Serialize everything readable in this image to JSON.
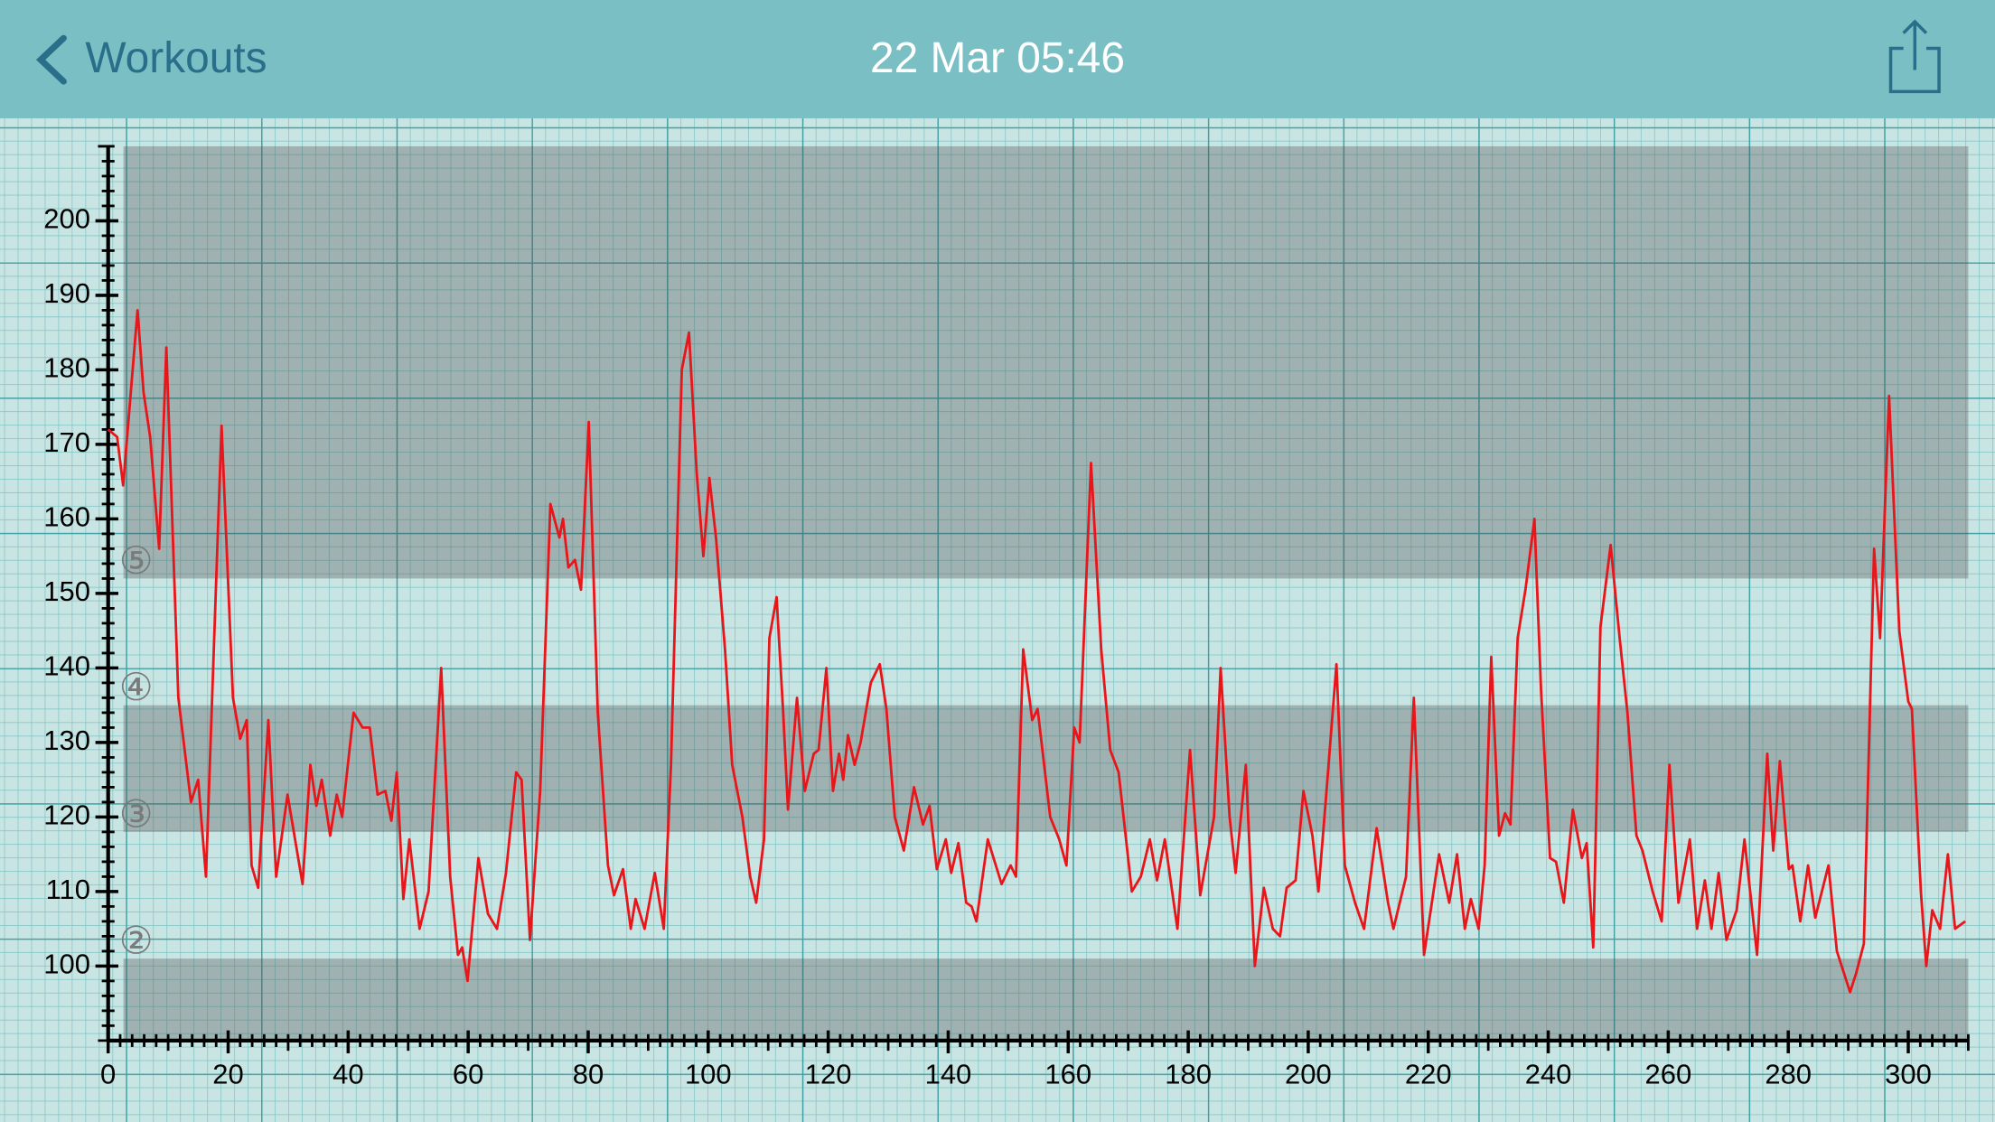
{
  "header": {
    "back": "Workouts",
    "title": "22 Mar 05:46"
  },
  "chart_data": {
    "type": "line",
    "xlim": [
      0,
      310
    ],
    "ylim": [
      90,
      210
    ],
    "xticks": [
      0,
      20,
      40,
      60,
      80,
      100,
      120,
      140,
      160,
      180,
      200,
      220,
      240,
      260,
      280,
      300
    ],
    "yticks": [
      100,
      110,
      120,
      130,
      140,
      150,
      160,
      170,
      180,
      190,
      200
    ],
    "minor_tick_step": 2,
    "zones": [
      {
        "from": 90,
        "to": 101,
        "shaded": true
      },
      {
        "label": "②",
        "from": 101,
        "to": 118,
        "shaded": false
      },
      {
        "label": "③",
        "from": 118,
        "to": 135,
        "shaded": true
      },
      {
        "label": "④",
        "from": 135,
        "to": 152,
        "shaded": false
      },
      {
        "label": "⑤",
        "from": 152,
        "to": 210,
        "shaded": true
      }
    ],
    "x": [
      0,
      1.5,
      2.5,
      4.9,
      5.9,
      7,
      8.5,
      9.7,
      11.7,
      13.8,
      15,
      16.3,
      18.9,
      20.8,
      22,
      23.1,
      23.9,
      25,
      26.7,
      28,
      29.9,
      32.4,
      33.7,
      34.7,
      35.6,
      37,
      38.1,
      39,
      40.9,
      42.4,
      43.6,
      44.9,
      46.2,
      47.2,
      48.1,
      49.2,
      50.2,
      51.9,
      53.4,
      55.5,
      57,
      58.3,
      59,
      59.9,
      61.7,
      63.3,
      64.8,
      66.3,
      68,
      68.9,
      70.3,
      72,
      73.7,
      75.2,
      75.8,
      76.7,
      77.8,
      78.8,
      80.1,
      81.6,
      83.3,
      84.3,
      85.8,
      87.1,
      87.9,
      89.4,
      91.1,
      92.6,
      93.8,
      95.6,
      96.8,
      98.1,
      99.2,
      100.2,
      101.3,
      102.8,
      104,
      105.7,
      107,
      108,
      109.3,
      110.2,
      111.4,
      112.5,
      113.3,
      114.8,
      116.1,
      117.6,
      118.4,
      119.7,
      120.8,
      121.8,
      122.5,
      123.3,
      124.4,
      125.4,
      127.1,
      128.6,
      129.7,
      131.1,
      132.6,
      134.3,
      135.8,
      136.9,
      138.1,
      139.6,
      140.5,
      141.7,
      143,
      143.9,
      144.7,
      146.6,
      148.9,
      150.4,
      151.3,
      152.5,
      154,
      154.9,
      155.7,
      157,
      158.5,
      159.7,
      161,
      161.9,
      163.8,
      165.5,
      167,
      168.4,
      170.6,
      172.1,
      173.6,
      174.8,
      176.1,
      178.2,
      180.3,
      182,
      184.3,
      185.4,
      186.9,
      187.9,
      189.6,
      191.1,
      192.6,
      194.1,
      195.3,
      196.4,
      197.9,
      199.2,
      200.7,
      201.7,
      203,
      204.7,
      206.1,
      207.8,
      209.3,
      211.4,
      213.3,
      214.2,
      216.3,
      217.6,
      219.3,
      220.6,
      221.8,
      223.5,
      224.8,
      226.1,
      227.1,
      228.4,
      229.4,
      230.5,
      231.8,
      232.8,
      233.7,
      234.9,
      236.2,
      237.7,
      238.8,
      240.3,
      241.3,
      242.6,
      244.1,
      245.6,
      246.4,
      247.5,
      248.7,
      250.4,
      251.9,
      253.2,
      254.7,
      255.7,
      257.4,
      258.9,
      260.2,
      261.7,
      263.6,
      264.8,
      266.1,
      267.2,
      268.4,
      269.7,
      271.4,
      272.7,
      274.8,
      276.5,
      277.5,
      278.6,
      280.1,
      280.7,
      282,
      283.3,
      284.5,
      286.7,
      288.1,
      290.3,
      291.3,
      292.6,
      294.3,
      295.3,
      296.8,
      298.5,
      300,
      300.6,
      302.1,
      303,
      304,
      305.3,
      306.6,
      307.8,
      309.5
    ],
    "series": [
      {
        "color": "#e8161b",
        "values": [
          172,
          171,
          164.5,
          188,
          177,
          171,
          156,
          183,
          136,
          122,
          125,
          112,
          172.5,
          136,
          130.5,
          133,
          113.5,
          110.5,
          133,
          112,
          123,
          111,
          127,
          121.5,
          125,
          117.5,
          123,
          120,
          134,
          132,
          132,
          123,
          123.5,
          119.5,
          126,
          109,
          117,
          105,
          110,
          140,
          112,
          101.5,
          102.5,
          98,
          114.5,
          107,
          105,
          112.5,
          126,
          125,
          103.5,
          123.5,
          162,
          157.5,
          160,
          153.5,
          154.5,
          150.5,
          173,
          134,
          113.5,
          109.5,
          113,
          105,
          109,
          105,
          112.5,
          105,
          127,
          180,
          185,
          166,
          155,
          165.5,
          157.5,
          142.5,
          127,
          120,
          112,
          108.5,
          117,
          144,
          149.5,
          134,
          121,
          136,
          123.5,
          128.5,
          129,
          140,
          123.5,
          128.5,
          125,
          131,
          127,
          130,
          138,
          140.5,
          134.5,
          120,
          115.5,
          124,
          119,
          121.5,
          113,
          117,
          112.5,
          116.5,
          108.5,
          108,
          106,
          117,
          111,
          113.5,
          112,
          142.5,
          133,
          134.5,
          129,
          120,
          117,
          113.5,
          132,
          130,
          167.5,
          142.5,
          129,
          126,
          110,
          112,
          117,
          111.5,
          117,
          105,
          129,
          109.5,
          120,
          140,
          120,
          112.5,
          127,
          100,
          110.5,
          105,
          104,
          110.5,
          111.5,
          123.5,
          117.5,
          110,
          123,
          140.5,
          113.5,
          108.5,
          105,
          118.5,
          108.5,
          105,
          112,
          136,
          101.5,
          108.5,
          115,
          108.5,
          115,
          105,
          109,
          105,
          113.5,
          141.5,
          117.5,
          120.5,
          119,
          144,
          150.5,
          160,
          137,
          114.5,
          114,
          108.5,
          121,
          114.5,
          116.5,
          102.5,
          145.5,
          156.5,
          144,
          134,
          117.5,
          115.5,
          110,
          106,
          127,
          108.5,
          117,
          105,
          111.5,
          105,
          112.5,
          103.5,
          107.5,
          117,
          101.5,
          128.5,
          115.5,
          127.5,
          113,
          113.5,
          106,
          113.5,
          106.5,
          113.5,
          102,
          96.5,
          99,
          103,
          156,
          144,
          176.5,
          145,
          135.5,
          134.5,
          110,
          100,
          107.5,
          105,
          115,
          105,
          106
        ]
      }
    ]
  }
}
